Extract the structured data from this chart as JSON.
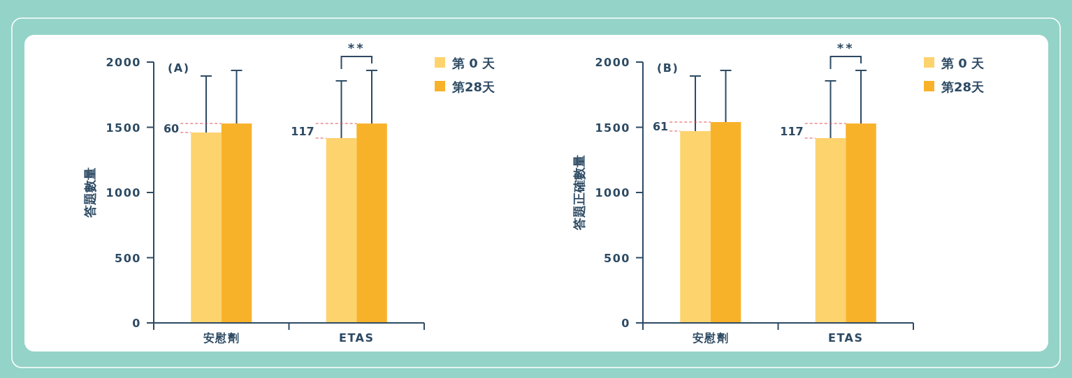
{
  "chart_data": [
    {
      "type": "bar",
      "title": "(A)",
      "ylabel": "答題數量",
      "categories": [
        "安慰劑",
        "ETAS"
      ],
      "series": [
        {
          "name": "第 0 天",
          "color": "#fdd36e",
          "values": [
            1460,
            1417
          ],
          "errors": [
            [
              1460,
              1893
            ],
            [
              1417,
              1856
            ]
          ]
        },
        {
          "name": "第28天",
          "color": "#f8b22a",
          "values": [
            1529,
            1529
          ],
          "errors": [
            [
              1529,
              1936
            ],
            [
              1529,
              1936
            ]
          ]
        }
      ],
      "ylim": [
        0,
        2000
      ],
      "yticks": [
        0,
        500,
        1000,
        1500,
        2000
      ],
      "grid": false,
      "legend": "right",
      "annotations": [
        {
          "text": "60",
          "x": "安慰劑",
          "y": 1529
        },
        {
          "text": "117",
          "x": "ETAS",
          "y": 1529
        },
        {
          "text": "**",
          "x": "ETAS",
          "y": 2000
        }
      ]
    },
    {
      "type": "bar",
      "title": "(B)",
      "ylabel": "答題正確數量",
      "categories": [
        "安慰劑",
        "ETAS"
      ],
      "series": [
        {
          "name": "第 0 天",
          "color": "#fdd36e",
          "values": [
            1471,
            1417
          ],
          "errors": [
            [
              1471,
              1893
            ],
            [
              1417,
              1856
            ]
          ]
        },
        {
          "name": "第28天",
          "color": "#f8b22a",
          "values": [
            1540,
            1529
          ],
          "errors": [
            [
              1540,
              1936
            ],
            [
              1529,
              1936
            ]
          ]
        }
      ],
      "ylim": [
        0,
        2000
      ],
      "yticks": [
        0,
        500,
        1000,
        1500,
        2000
      ],
      "grid": false,
      "legend": "right",
      "annotations": [
        {
          "text": "61",
          "x": "安慰劑",
          "y": 1540
        },
        {
          "text": "117",
          "x": "ETAS",
          "y": 1529
        },
        {
          "text": "**",
          "x": "ETAS",
          "y": 2000
        }
      ]
    }
  ]
}
